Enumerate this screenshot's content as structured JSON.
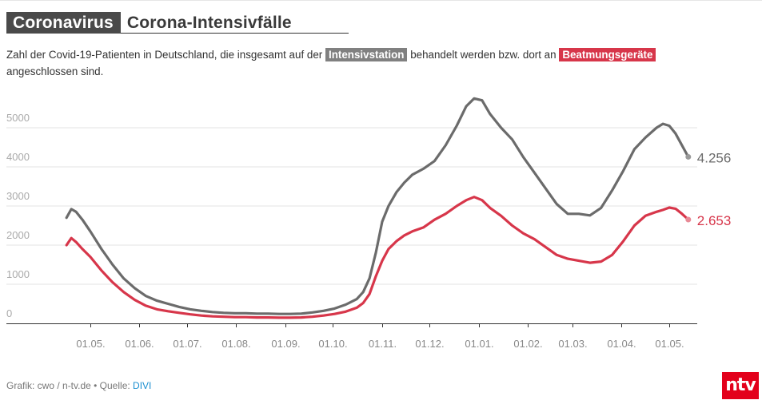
{
  "header": {
    "kicker": "Coronavirus",
    "title": "Corona-Intensivfälle"
  },
  "intro": {
    "text_before": "Zahl der Covid-19-Patienten in Deutschland, die insgesamt auf der ",
    "tag_icu": "Intensivstation",
    "text_middle": " behandelt werden bzw. dort an ",
    "tag_ventilation": "Beatmungsgeräte",
    "text_after": " angeschlossen sind."
  },
  "colors": {
    "icu": "#6b6b6b",
    "ventilation": "#d7364a",
    "grid": "#e3e3e3",
    "axis": "#333333",
    "tick_label": "#888888",
    "tag_gray": "#808080",
    "brand_red": "#e3001b",
    "link": "#1a8fd0"
  },
  "footer": {
    "credit": "Grafik: cwo / n-tv.de • Quelle: ",
    "source": "DIVI"
  },
  "logo": {
    "text": "ntv"
  },
  "chart_data": {
    "type": "line",
    "title": "Corona-Intensivfälle",
    "xlabel": "",
    "ylabel": "",
    "ylim": [
      0,
      6000
    ],
    "yticks": [
      0,
      1000,
      2000,
      3000,
      4000,
      5000
    ],
    "grid": true,
    "legend": "inline-tags-in-subtitle",
    "x_start": "2020-04-16",
    "x_end": "2021-05-13",
    "xticks": [
      {
        "date": "2020-05-01",
        "label": "01.05."
      },
      {
        "date": "2020-06-01",
        "label": "01.06."
      },
      {
        "date": "2020-07-01",
        "label": "01.07."
      },
      {
        "date": "2020-08-01",
        "label": "01.08."
      },
      {
        "date": "2020-09-01",
        "label": "01.09."
      },
      {
        "date": "2020-10-01",
        "label": "01.10."
      },
      {
        "date": "2020-11-01",
        "label": "01.11."
      },
      {
        "date": "2020-12-01",
        "label": "01.12."
      },
      {
        "date": "2021-01-01",
        "label": "01.01."
      },
      {
        "date": "2021-02-01",
        "label": "01.02."
      },
      {
        "date": "2021-03-01",
        "label": "01.03."
      },
      {
        "date": "2021-04-01",
        "label": "01.04."
      },
      {
        "date": "2021-05-01",
        "label": "01.05."
      }
    ],
    "x": [
      "2020-04-16",
      "2020-04-19",
      "2020-04-22",
      "2020-04-26",
      "2020-05-01",
      "2020-05-08",
      "2020-05-15",
      "2020-05-22",
      "2020-05-29",
      "2020-06-05",
      "2020-06-12",
      "2020-06-19",
      "2020-06-26",
      "2020-07-03",
      "2020-07-10",
      "2020-07-17",
      "2020-07-24",
      "2020-07-31",
      "2020-08-07",
      "2020-08-14",
      "2020-08-21",
      "2020-08-28",
      "2020-09-04",
      "2020-09-11",
      "2020-09-18",
      "2020-09-25",
      "2020-10-02",
      "2020-10-09",
      "2020-10-16",
      "2020-10-20",
      "2020-10-24",
      "2020-10-28",
      "2020-11-01",
      "2020-11-05",
      "2020-11-10",
      "2020-11-15",
      "2020-11-20",
      "2020-11-27",
      "2020-12-04",
      "2020-12-11",
      "2020-12-18",
      "2020-12-24",
      "2020-12-29",
      "2021-01-03",
      "2021-01-08",
      "2021-01-15",
      "2021-01-22",
      "2021-01-29",
      "2021-02-05",
      "2021-02-12",
      "2021-02-19",
      "2021-02-26",
      "2021-03-05",
      "2021-03-12",
      "2021-03-19",
      "2021-03-26",
      "2021-04-02",
      "2021-04-09",
      "2021-04-16",
      "2021-04-23",
      "2021-04-27",
      "2021-05-01",
      "2021-05-05",
      "2021-05-09",
      "2021-05-13"
    ],
    "series": [
      {
        "name": "Intensivstation",
        "end_label": "4.256",
        "values": [
          2700,
          2920,
          2850,
          2650,
          2350,
          1900,
          1500,
          1150,
          900,
          700,
          580,
          500,
          420,
          360,
          320,
          290,
          270,
          260,
          260,
          250,
          250,
          240,
          240,
          250,
          280,
          320,
          380,
          480,
          620,
          800,
          1150,
          1800,
          2600,
          3000,
          3350,
          3600,
          3800,
          3950,
          4150,
          4550,
          5050,
          5550,
          5750,
          5700,
          5350,
          5000,
          4700,
          4250,
          3850,
          3450,
          3050,
          2800,
          2800,
          2760,
          2950,
          3400,
          3900,
          4450,
          4750,
          5000,
          5100,
          5050,
          4850,
          4550,
          4256
        ]
      },
      {
        "name": "Beatmungsgeräte",
        "end_label": "2.653",
        "values": [
          2000,
          2180,
          2080,
          1900,
          1700,
          1350,
          1050,
          800,
          600,
          450,
          360,
          310,
          270,
          230,
          200,
          180,
          170,
          160,
          160,
          150,
          150,
          145,
          145,
          150,
          170,
          200,
          240,
          300,
          400,
          520,
          750,
          1200,
          1600,
          1900,
          2100,
          2250,
          2350,
          2450,
          2650,
          2800,
          3000,
          3150,
          3230,
          3150,
          2950,
          2750,
          2500,
          2300,
          2150,
          1950,
          1750,
          1650,
          1600,
          1550,
          1580,
          1750,
          2100,
          2500,
          2750,
          2850,
          2900,
          2960,
          2930,
          2800,
          2653
        ]
      }
    ]
  }
}
